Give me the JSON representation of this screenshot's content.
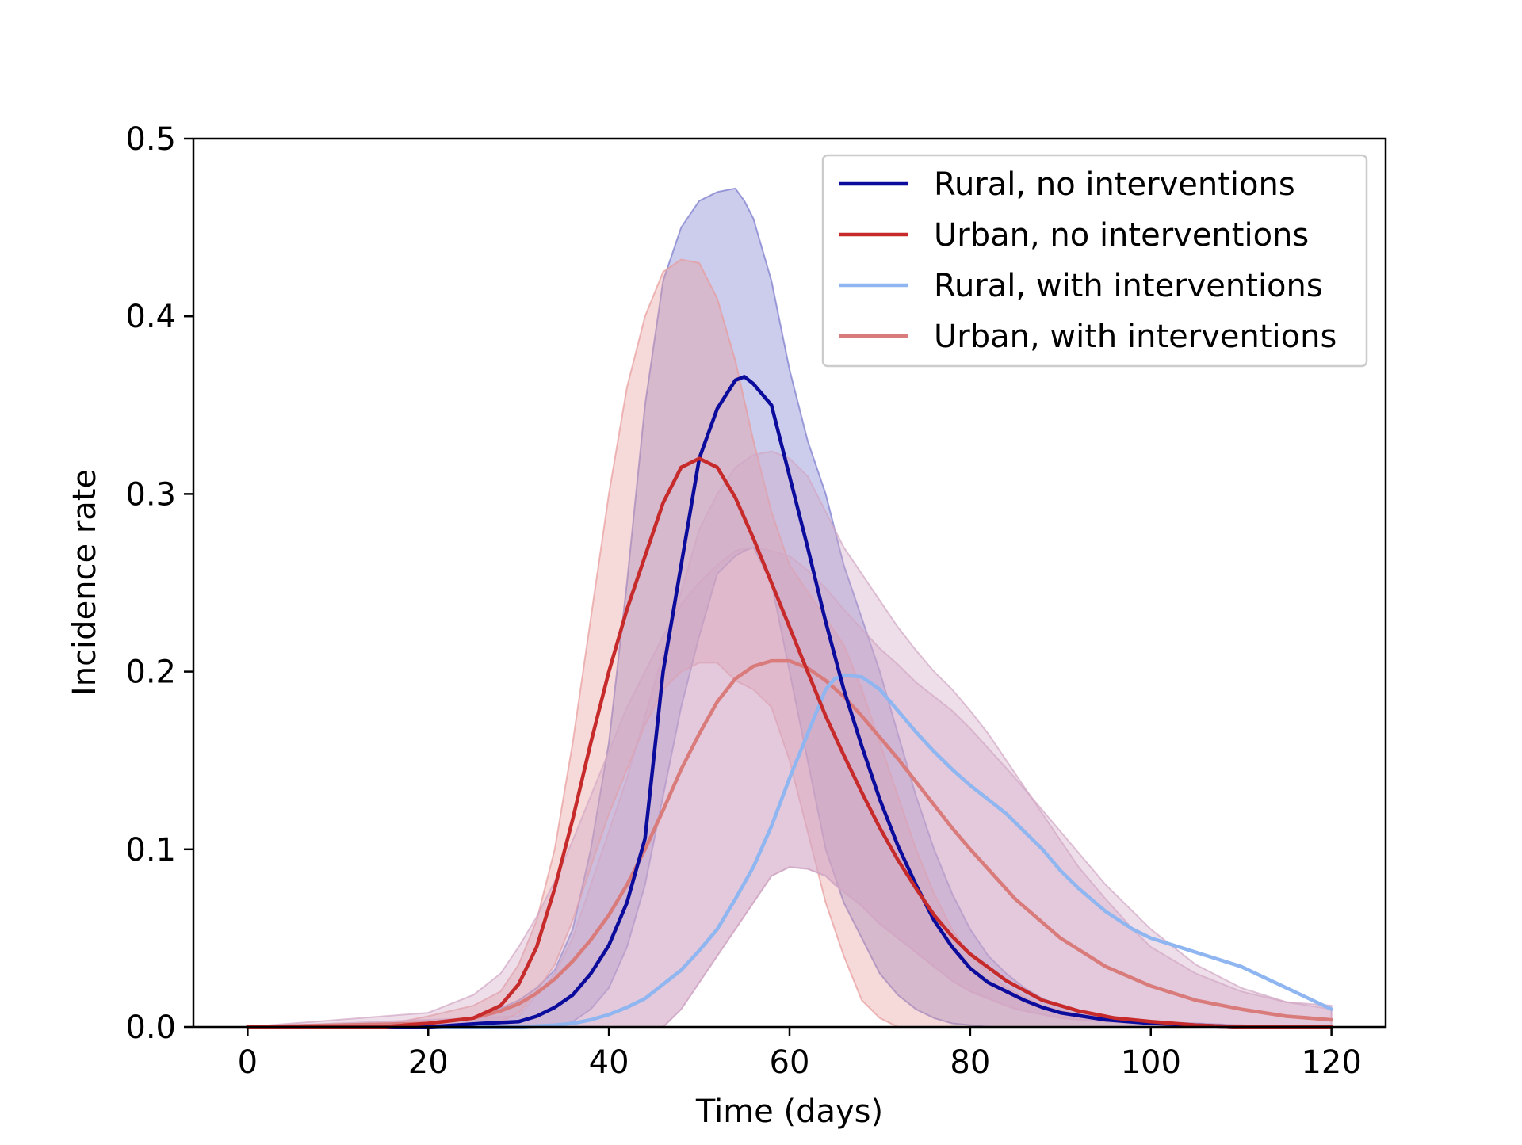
{
  "chart_data": {
    "type": "line",
    "title": "",
    "xlabel": "Time (days)",
    "ylabel": "Incidence rate",
    "xlim": [
      -6,
      126
    ],
    "ylim": [
      0.0,
      0.5
    ],
    "xticks": [
      0,
      20,
      40,
      60,
      80,
      100,
      120
    ],
    "xtick_labels": [
      "0",
      "20",
      "40",
      "60",
      "80",
      "100",
      "120"
    ],
    "yticks": [
      0.0,
      0.1,
      0.2,
      0.3,
      0.4,
      0.5
    ],
    "ytick_labels": [
      "0.0",
      "0.1",
      "0.2",
      "0.3",
      "0.4",
      "0.5"
    ],
    "grid": false,
    "legend_position": "upper-right",
    "series": [
      {
        "name": "Rural, no interventions",
        "color": "#0c0c9c",
        "band_color": "#7878cc",
        "x": [
          0,
          20,
          26,
          30,
          32,
          34,
          36,
          38,
          40,
          42,
          44,
          46,
          48,
          50,
          52,
          54,
          55,
          56,
          58,
          60,
          62,
          64,
          66,
          68,
          70,
          72,
          74,
          76,
          78,
          80,
          82,
          84,
          86,
          88,
          90,
          95,
          100,
          105,
          110,
          115,
          120
        ],
        "y": [
          0.0,
          0.0,
          0.002,
          0.003,
          0.006,
          0.011,
          0.018,
          0.03,
          0.046,
          0.07,
          0.106,
          0.2,
          0.26,
          0.32,
          0.348,
          0.364,
          0.366,
          0.362,
          0.35,
          0.31,
          0.27,
          0.228,
          0.19,
          0.158,
          0.128,
          0.102,
          0.08,
          0.06,
          0.045,
          0.033,
          0.025,
          0.02,
          0.015,
          0.011,
          0.008,
          0.004,
          0.002,
          0.001,
          0.0,
          0.0,
          0.0
        ],
        "band_lower": [
          0.0,
          0.0,
          0.0,
          0.0,
          0.0,
          0.0,
          0.003,
          0.01,
          0.022,
          0.045,
          0.08,
          0.13,
          0.18,
          0.22,
          0.255,
          0.265,
          0.268,
          0.27,
          0.25,
          0.2,
          0.15,
          0.1,
          0.07,
          0.05,
          0.03,
          0.018,
          0.01,
          0.005,
          0.002,
          0.001,
          0.0,
          0.0,
          0.0,
          0.0,
          0.0,
          0.0,
          0.0,
          0.0,
          0.0,
          0.0,
          0.0
        ],
        "band_upper": [
          0.0,
          0.001,
          0.006,
          0.015,
          0.022,
          0.032,
          0.055,
          0.1,
          0.16,
          0.25,
          0.35,
          0.42,
          0.45,
          0.465,
          0.47,
          0.472,
          0.465,
          0.455,
          0.42,
          0.37,
          0.33,
          0.3,
          0.26,
          0.23,
          0.2,
          0.165,
          0.13,
          0.1,
          0.075,
          0.055,
          0.04,
          0.03,
          0.022,
          0.016,
          0.012,
          0.006,
          0.003,
          0.002,
          0.001,
          0.0,
          0.0
        ]
      },
      {
        "name": "Urban, no interventions",
        "color": "#c72a2a",
        "band_color": "#e89a9a",
        "x": [
          0,
          15,
          20,
          25,
          28,
          30,
          32,
          34,
          36,
          38,
          40,
          42,
          44,
          46,
          48,
          50,
          52,
          54,
          56,
          58,
          60,
          62,
          64,
          66,
          68,
          70,
          72,
          74,
          76,
          78,
          80,
          84,
          88,
          92,
          96,
          100,
          105,
          110,
          115,
          120
        ],
        "y": [
          0.0,
          0.0,
          0.002,
          0.005,
          0.012,
          0.024,
          0.045,
          0.078,
          0.117,
          0.16,
          0.2,
          0.235,
          0.265,
          0.295,
          0.315,
          0.32,
          0.315,
          0.298,
          0.275,
          0.25,
          0.225,
          0.2,
          0.175,
          0.153,
          0.132,
          0.112,
          0.094,
          0.078,
          0.063,
          0.051,
          0.041,
          0.026,
          0.015,
          0.009,
          0.005,
          0.003,
          0.001,
          0.0,
          0.0,
          0.0
        ],
        "band_lower": [
          0.0,
          0.0,
          0.0,
          0.001,
          0.003,
          0.008,
          0.02,
          0.035,
          0.06,
          0.09,
          0.12,
          0.145,
          0.17,
          0.19,
          0.2,
          0.205,
          0.205,
          0.195,
          0.19,
          0.18,
          0.15,
          0.11,
          0.07,
          0.04,
          0.015,
          0.005,
          0.0,
          0.0,
          0.0,
          0.0,
          0.0,
          0.0,
          0.0,
          0.0,
          0.0,
          0.0,
          0.0,
          0.0,
          0.0,
          0.0
        ],
        "band_upper": [
          0.0,
          0.001,
          0.006,
          0.012,
          0.02,
          0.035,
          0.06,
          0.1,
          0.16,
          0.23,
          0.3,
          0.36,
          0.4,
          0.425,
          0.432,
          0.43,
          0.41,
          0.375,
          0.33,
          0.29,
          0.26,
          0.245,
          0.23,
          0.215,
          0.19,
          0.16,
          0.13,
          0.1,
          0.075,
          0.055,
          0.04,
          0.022,
          0.012,
          0.007,
          0.004,
          0.002,
          0.001,
          0.0,
          0.0,
          0.0
        ]
      },
      {
        "name": "Rural, with interventions",
        "color": "#8fb6f0",
        "band_color": "#d2a7c4",
        "x": [
          0,
          30,
          34,
          36,
          38,
          40,
          42,
          44,
          46,
          48,
          50,
          52,
          54,
          56,
          58,
          60,
          62,
          64,
          65,
          66,
          68,
          70,
          72,
          74,
          76,
          78,
          80,
          82,
          84,
          86,
          88,
          90,
          92,
          95,
          98,
          100,
          105,
          110,
          115,
          120
        ],
        "y": [
          0.0,
          0.0,
          0.001,
          0.002,
          0.004,
          0.007,
          0.011,
          0.016,
          0.024,
          0.032,
          0.043,
          0.055,
          0.072,
          0.09,
          0.113,
          0.14,
          0.165,
          0.19,
          0.196,
          0.198,
          0.197,
          0.19,
          0.178,
          0.166,
          0.155,
          0.145,
          0.136,
          0.128,
          0.12,
          0.11,
          0.1,
          0.088,
          0.078,
          0.065,
          0.055,
          0.05,
          0.042,
          0.034,
          0.022,
          0.01
        ],
        "band_lower": [
          0.0,
          0.0,
          0.0,
          0.0,
          0.0,
          0.0,
          0.0,
          0.0,
          0.0,
          0.01,
          0.025,
          0.04,
          0.055,
          0.07,
          0.085,
          0.09,
          0.089,
          0.085,
          0.08,
          0.076,
          0.068,
          0.058,
          0.05,
          0.042,
          0.034,
          0.026,
          0.02,
          0.016,
          0.012,
          0.009,
          0.007,
          0.005,
          0.004,
          0.003,
          0.002,
          0.002,
          0.001,
          0.001,
          0.0,
          0.0
        ],
        "band_upper": [
          0.0,
          0.006,
          0.03,
          0.05,
          0.08,
          0.11,
          0.14,
          0.175,
          0.21,
          0.245,
          0.28,
          0.3,
          0.315,
          0.322,
          0.324,
          0.32,
          0.31,
          0.29,
          0.28,
          0.27,
          0.255,
          0.24,
          0.225,
          0.212,
          0.2,
          0.19,
          0.178,
          0.165,
          0.15,
          0.135,
          0.12,
          0.105,
          0.09,
          0.072,
          0.055,
          0.045,
          0.03,
          0.02,
          0.014,
          0.012
        ]
      },
      {
        "name": "Urban, with interventions",
        "color": "#d97b7b",
        "band_color": "#d2a7c4",
        "x": [
          0,
          20,
          25,
          28,
          30,
          32,
          34,
          36,
          38,
          40,
          42,
          44,
          46,
          48,
          50,
          52,
          54,
          56,
          58,
          60,
          62,
          64,
          66,
          68,
          70,
          72,
          74,
          76,
          78,
          80,
          85,
          90,
          95,
          100,
          105,
          110,
          115,
          120
        ],
        "y": [
          0.0,
          0.002,
          0.005,
          0.009,
          0.013,
          0.019,
          0.027,
          0.037,
          0.049,
          0.063,
          0.08,
          0.1,
          0.122,
          0.145,
          0.165,
          0.183,
          0.196,
          0.203,
          0.206,
          0.206,
          0.202,
          0.195,
          0.186,
          0.175,
          0.163,
          0.151,
          0.138,
          0.125,
          0.112,
          0.1,
          0.072,
          0.05,
          0.034,
          0.023,
          0.015,
          0.01,
          0.006,
          0.004
        ],
        "band_lower": [
          0.0,
          0.0,
          0.0,
          0.0,
          0.0,
          0.0,
          0.0,
          0.0,
          0.0,
          0.0,
          0.0,
          0.0,
          0.0,
          0.01,
          0.025,
          0.04,
          0.055,
          0.07,
          0.085,
          0.09,
          0.089,
          0.085,
          0.076,
          0.068,
          0.058,
          0.05,
          0.042,
          0.034,
          0.026,
          0.02,
          0.01,
          0.005,
          0.003,
          0.002,
          0.001,
          0.001,
          0.0,
          0.0
        ],
        "band_upper": [
          0.0,
          0.008,
          0.018,
          0.03,
          0.045,
          0.062,
          0.082,
          0.105,
          0.13,
          0.155,
          0.18,
          0.2,
          0.22,
          0.238,
          0.25,
          0.26,
          0.268,
          0.27,
          0.268,
          0.265,
          0.257,
          0.247,
          0.235,
          0.224,
          0.213,
          0.204,
          0.194,
          0.186,
          0.178,
          0.168,
          0.14,
          0.11,
          0.08,
          0.055,
          0.035,
          0.022,
          0.014,
          0.01
        ]
      }
    ]
  }
}
